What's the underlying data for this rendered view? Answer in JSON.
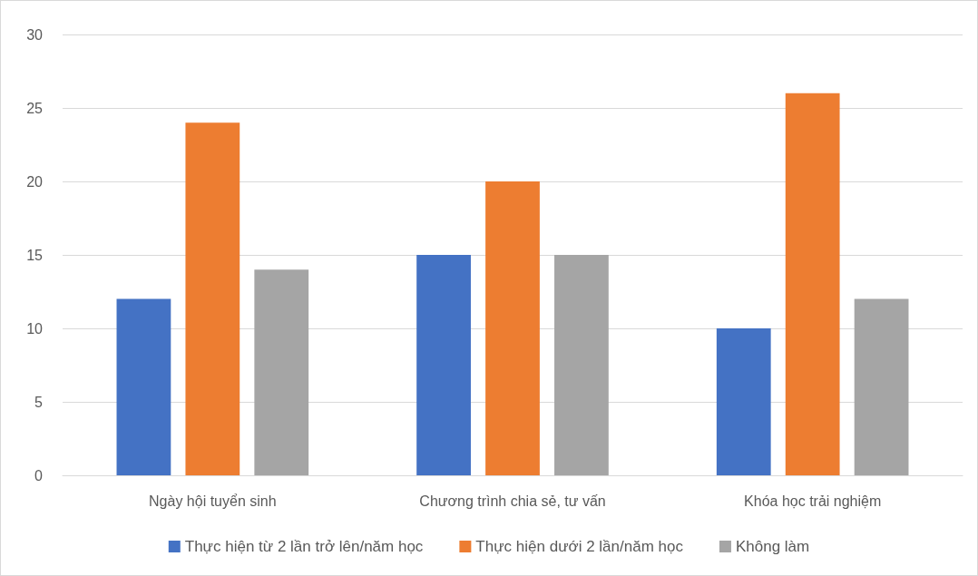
{
  "chart_data": {
    "type": "bar",
    "categories": [
      "Ngày hội tuyển sinh",
      "Chương trình chia sẻ, tư vấn",
      "Khóa học trải nghiệm"
    ],
    "series": [
      {
        "name": "Thực hiện từ 2 lần trở lên/năm học",
        "color": "#4472c4",
        "values": [
          12,
          15,
          10
        ]
      },
      {
        "name": "Thực hiện dưới 2 lần/năm học",
        "color": "#ed7d31",
        "values": [
          24,
          20,
          26
        ]
      },
      {
        "name": "Không làm",
        "color": "#a5a5a5",
        "values": [
          14,
          15,
          12
        ]
      }
    ],
    "ylim": [
      0,
      30
    ],
    "yticks": [
      0,
      5,
      10,
      15,
      20,
      25,
      30
    ],
    "grid": "y",
    "legend": "bottom"
  }
}
